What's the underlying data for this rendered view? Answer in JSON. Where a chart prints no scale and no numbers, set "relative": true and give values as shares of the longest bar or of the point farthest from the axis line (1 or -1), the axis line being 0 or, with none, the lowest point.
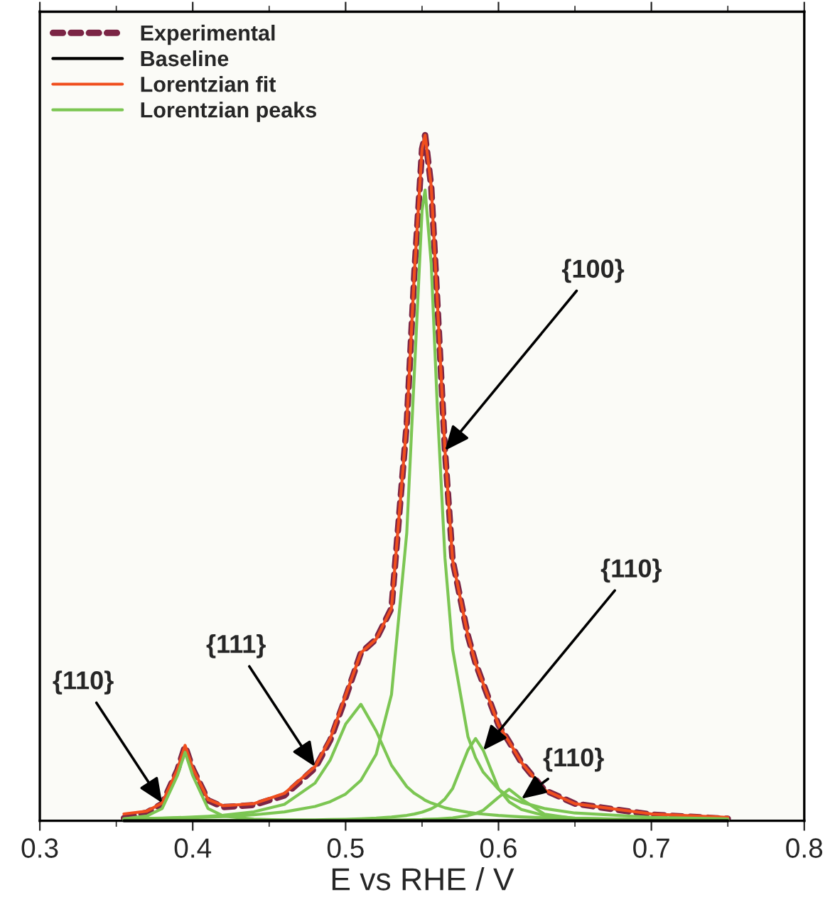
{
  "chart_data": {
    "type": "line",
    "relative": true,
    "xlabel": "E vs RHE / V",
    "x": [
      0.355,
      0.37,
      0.38,
      0.39,
      0.395,
      0.4,
      0.41,
      0.42,
      0.44,
      0.46,
      0.48,
      0.49,
      0.5,
      0.51,
      0.52,
      0.53,
      0.54,
      0.545,
      0.55,
      0.552,
      0.556,
      0.56,
      0.565,
      0.57,
      0.58,
      0.585,
      0.59,
      0.6,
      0.607,
      0.615,
      0.63,
      0.65,
      0.7,
      0.75
    ],
    "xlim": [
      0.3,
      0.8
    ],
    "xticks": [
      0.3,
      0.4,
      0.5,
      0.6,
      0.7,
      0.8
    ],
    "tick_labels": "x",
    "grid": false,
    "legend": "top left",
    "series": [
      {
        "name": "Experimental",
        "color": "#7b2545",
        "line_style": "dashed",
        "values": [
          0.004,
          0.012,
          0.025,
          0.074,
          0.109,
          0.076,
          0.03,
          0.02,
          0.023,
          0.037,
          0.077,
          0.118,
          0.18,
          0.245,
          0.265,
          0.31,
          0.58,
          0.8,
          0.98,
          1.0,
          0.925,
          0.757,
          0.54,
          0.38,
          0.27,
          0.23,
          0.2,
          0.14,
          0.115,
          0.085,
          0.045,
          0.025,
          0.009,
          0.003
        ]
      },
      {
        "name": "Baseline",
        "color": "#000000",
        "line_style": "solid",
        "values": [
          0,
          0,
          0,
          0,
          0,
          0,
          0,
          0,
          0,
          0,
          0,
          0,
          0,
          0,
          0,
          0,
          0,
          0,
          0,
          0,
          0,
          0,
          0,
          0,
          0,
          0,
          0,
          0,
          0,
          0,
          0,
          0,
          0,
          0
        ]
      },
      {
        "name": "Lorentzian fit",
        "color": "#f04e1e",
        "line_style": "solid",
        "values": [
          0.01,
          0.014,
          0.026,
          0.075,
          0.11,
          0.077,
          0.031,
          0.022,
          0.025,
          0.04,
          0.079,
          0.12,
          0.183,
          0.245,
          0.265,
          0.31,
          0.58,
          0.8,
          0.98,
          1.0,
          0.925,
          0.757,
          0.54,
          0.38,
          0.27,
          0.23,
          0.2,
          0.14,
          0.115,
          0.085,
          0.045,
          0.025,
          0.01,
          0.005
        ]
      },
      {
        "name": "Lorentzian peaks",
        "color": "#7cc653",
        "line_style": "solid",
        "values": [
          0.003,
          0.007,
          0.018,
          0.066,
          0.1,
          0.066,
          0.018,
          0.007,
          0.0024,
          0.0011,
          0.0007,
          0.0005,
          0.0004,
          0.0003,
          0.0003,
          0.0003,
          0.0003,
          0.0003,
          0.0003,
          0.0003,
          0.0002,
          0.0002,
          0.0002,
          0.0002,
          0.0002,
          0.0002,
          0.0002,
          0.0002,
          0.0002,
          0.0002,
          0.0001,
          0.0001,
          0.0001,
          0.0001
        ]
      },
      {
        "color": "#7cc653",
        "line_style": "solid",
        "values": [
          0.0028,
          0.0034,
          0.004,
          0.0047,
          0.0051,
          0.0055,
          0.0067,
          0.0082,
          0.0132,
          0.024,
          0.055,
          0.089,
          0.141,
          0.17,
          0.131,
          0.081,
          0.05,
          0.04,
          0.033,
          0.03,
          0.026,
          0.023,
          0.019,
          0.0165,
          0.0125,
          0.011,
          0.0098,
          0.0078,
          0.0068,
          0.0058,
          0.0045,
          0.0034,
          0.0018,
          0.0012
        ]
      },
      {
        "color": "#7cc653",
        "line_style": "solid",
        "values": [
          0.0029,
          0.0034,
          0.0038,
          0.0042,
          0.0045,
          0.0048,
          0.0055,
          0.0063,
          0.0088,
          0.013,
          0.021,
          0.028,
          0.039,
          0.059,
          0.097,
          0.184,
          0.42,
          0.655,
          0.89,
          0.92,
          0.813,
          0.602,
          0.383,
          0.25,
          0.123,
          0.092,
          0.071,
          0.046,
          0.035,
          0.027,
          0.018,
          0.0114,
          0.0051,
          0.0028
        ]
      },
      {
        "color": "#7cc653",
        "line_style": "solid",
        "values": [
          0.0003,
          0.0004,
          0.0004,
          0.00045,
          0.0005,
          0.0005,
          0.0006,
          0.0006,
          0.0008,
          0.0011,
          0.0015,
          0.0019,
          0.0023,
          0.003,
          0.0039,
          0.0055,
          0.0079,
          0.0099,
          0.0126,
          0.0142,
          0.0175,
          0.0225,
          0.032,
          0.047,
          0.103,
          0.12,
          0.103,
          0.047,
          0.0275,
          0.0166,
          0.0079,
          0.0039,
          0.0013,
          0.0006
        ]
      },
      {
        "color": "#7cc653",
        "line_style": "solid",
        "values": [
          0.0001,
          0.0001,
          0.0001,
          0.0001,
          0.0001,
          0.0002,
          0.0002,
          0.0002,
          0.0002,
          0.0003,
          0.0004,
          0.0005,
          0.0006,
          0.0007,
          0.0009,
          0.0011,
          0.0014,
          0.0017,
          0.0019,
          0.0021,
          0.0024,
          0.0028,
          0.0035,
          0.0044,
          0.0076,
          0.0106,
          0.0153,
          0.0343,
          0.046,
          0.0319,
          0.0098,
          0.0033,
          0.0008,
          0.0003
        ]
      }
    ],
    "annotations": [
      {
        "text": "{110}",
        "x": 0.38,
        "y": 0.026
      },
      {
        "text": "{111}",
        "x": 0.48,
        "y": 0.079
      },
      {
        "text": "{100}",
        "x": 0.565,
        "y": 0.54
      },
      {
        "text": "{110}",
        "x": 0.59,
        "y": 0.103
      },
      {
        "text": "{110}",
        "x": 0.615,
        "y": 0.032
      }
    ]
  }
}
